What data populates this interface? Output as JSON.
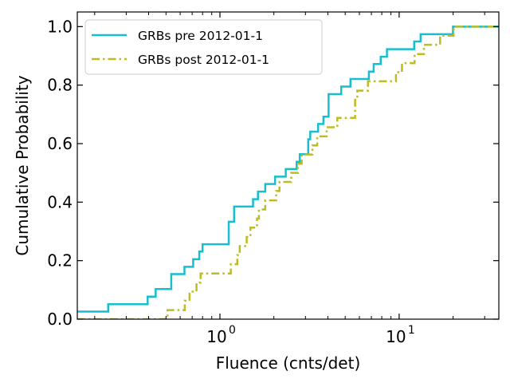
{
  "chart_data": {
    "type": "line",
    "title": "",
    "xlabel": "Fluence (cnts/det)",
    "ylabel": "Cumulative Probability",
    "xscale": "log",
    "xlim": [
      0.16,
      36
    ],
    "ylim": [
      0.0,
      1.05
    ],
    "grid": false,
    "legend_position": "top-left",
    "x_ticks": [
      {
        "value": 1,
        "label": "10",
        "exp": "0"
      },
      {
        "value": 10,
        "label": "10",
        "exp": "1"
      }
    ],
    "y_ticks": [
      "0.0",
      "0.2",
      "0.4",
      "0.6",
      "0.8",
      "1.0"
    ],
    "series": [
      {
        "name": "GRBs pre 2012-01-1",
        "color": "#17becf",
        "style": "solid",
        "x": [
          0.16,
          0.238,
          0.395,
          0.438,
          0.535,
          0.634,
          0.709,
          0.767,
          0.8,
          0.862,
          1.12,
          1.2,
          1.2,
          1.53,
          1.63,
          1.79,
          1.87,
          2.03,
          2.33,
          2.35,
          2.68,
          2.79,
          2.81,
          3.11,
          3.19,
          3.53,
          3.78,
          3.86,
          4.04,
          4.75,
          5.35,
          5.82,
          6.78,
          7.21,
          7.89,
          8.55,
          9.66,
          12.13,
          13.18,
          15.76,
          19.97,
          36.0
        ],
        "y": [
          0.026,
          0.051,
          0.077,
          0.103,
          0.154,
          0.179,
          0.205,
          0.231,
          0.256,
          0.256,
          0.333,
          0.359,
          0.385,
          0.41,
          0.436,
          0.462,
          0.462,
          0.487,
          0.513,
          0.513,
          0.538,
          0.564,
          0.564,
          0.615,
          0.641,
          0.667,
          0.692,
          0.692,
          0.769,
          0.795,
          0.821,
          0.821,
          0.846,
          0.872,
          0.897,
          0.923,
          0.923,
          0.949,
          0.974,
          0.974,
          1.0,
          1.0
        ]
      },
      {
        "name": "GRBs post 2012-01-1",
        "color": "#bcbd22",
        "style": "dashdot",
        "x": [
          0.16,
          0.51,
          0.637,
          0.677,
          0.74,
          0.78,
          1.15,
          1.25,
          1.29,
          1.41,
          1.48,
          1.61,
          1.65,
          1.79,
          1.91,
          2.06,
          2.15,
          2.5,
          2.72,
          2.86,
          3.28,
          3.49,
          3.94,
          4.52,
          5.68,
          5.84,
          6.7,
          7.14,
          9.6,
          10.37,
          12.2,
          13.75,
          15.0,
          16.93,
          20.14,
          36.0
        ],
        "y": [
          0.0,
          0.031,
          0.063,
          0.094,
          0.125,
          0.156,
          0.188,
          0.219,
          0.25,
          0.281,
          0.313,
          0.344,
          0.375,
          0.406,
          0.406,
          0.438,
          0.469,
          0.5,
          0.531,
          0.563,
          0.594,
          0.625,
          0.656,
          0.688,
          0.75,
          0.781,
          0.813,
          0.813,
          0.844,
          0.875,
          0.906,
          0.938,
          0.938,
          0.969,
          1.0,
          1.0
        ]
      }
    ]
  }
}
